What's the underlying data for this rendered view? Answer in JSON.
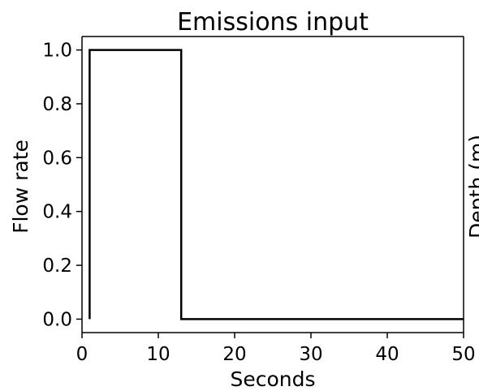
{
  "chart_data": {
    "type": "line",
    "title": "Emissions input",
    "xlabel": "Seconds",
    "ylabel": "Flow rate",
    "xlim": [
      0,
      50
    ],
    "ylim": [
      -0.05,
      1.05
    ],
    "xticks": [
      "0",
      "10",
      "20",
      "30",
      "40",
      "50"
    ],
    "yticks": [
      "0.0",
      "0.2",
      "0.4",
      "0.6",
      "0.8",
      "1.0"
    ],
    "grid": false,
    "legend": null,
    "series": [
      {
        "x": [
          1,
          1,
          13,
          13,
          50
        ],
        "y": [
          0.0,
          1.0,
          1.0,
          0.0,
          0.0
        ],
        "color": "#000000"
      }
    ],
    "clipped_right_text": "Depth (m)"
  }
}
